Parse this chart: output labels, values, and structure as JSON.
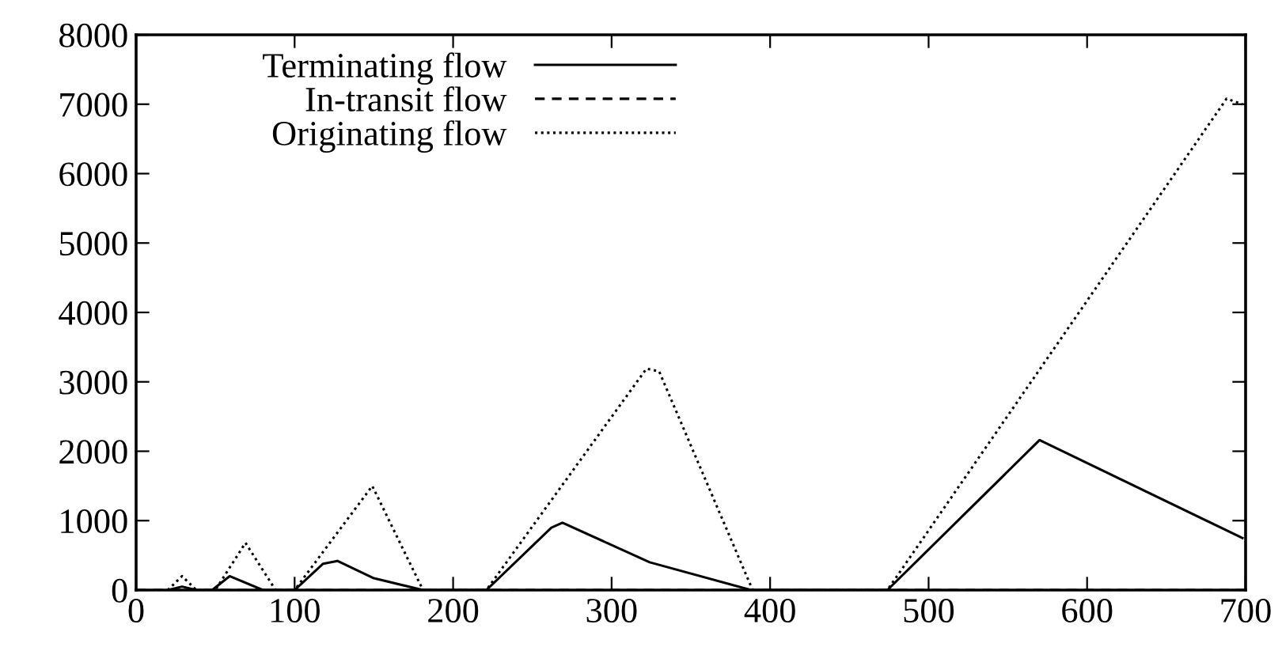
{
  "chart_data": {
    "type": "line",
    "xlim": [
      0,
      700
    ],
    "ylim": [
      0,
      8000
    ],
    "xticks": [
      0,
      100,
      200,
      300,
      400,
      500,
      600,
      700
    ],
    "yticks": [
      0,
      1000,
      2000,
      3000,
      4000,
      5000,
      6000,
      7000,
      8000
    ],
    "grid": false,
    "legend": "top",
    "marker": "none",
    "series": [
      {
        "name": "Terminating flow",
        "color": "#000000",
        "line_style": "solid",
        "x": [
          20,
          29,
          38,
          48,
          59,
          80,
          100,
          118,
          127,
          150,
          181,
          221,
          262,
          269,
          324,
          388,
          474,
          570,
          698
        ],
        "values": [
          0,
          50,
          0,
          0,
          200,
          0,
          0,
          380,
          420,
          170,
          0,
          0,
          900,
          970,
          400,
          0,
          0,
          2160,
          750
        ]
      },
      {
        "name": "In-transit flow",
        "color": "#000000",
        "line_style": "dashed",
        "x": [
          0,
          700
        ],
        "values": [
          0,
          0
        ]
      },
      {
        "name": "Originating flow",
        "color": "#000000",
        "line_style": "dotted",
        "x": [
          20,
          29,
          38,
          50,
          69,
          88,
          100,
          149,
          181,
          221,
          322,
          330,
          389,
          474,
          688,
          698
        ],
        "values": [
          0,
          200,
          0,
          0,
          680,
          0,
          0,
          1500,
          0,
          0,
          3190,
          3150,
          0,
          0,
          7080,
          7000
        ]
      }
    ]
  }
}
